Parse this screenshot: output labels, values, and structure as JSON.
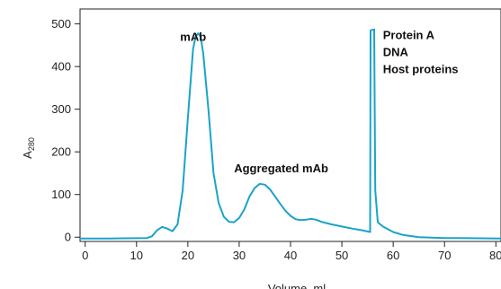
{
  "chart_data": {
    "type": "line",
    "title": "",
    "xlabel": "Volume, ml",
    "ylabel_main": "A",
    "ylabel_sub": "280",
    "xlim": [
      -1,
      81
    ],
    "ylim": [
      -10,
      535
    ],
    "x_ticks": [
      0,
      10,
      20,
      30,
      40,
      50,
      60,
      70,
      80
    ],
    "y_ticks": [
      0,
      100,
      200,
      300,
      400,
      500
    ],
    "grid": false,
    "legend": "none",
    "line_color": "#1aa3c8",
    "series": [
      {
        "values_xy": [
          [
            -1,
            -3
          ],
          [
            5,
            -3
          ],
          [
            10,
            -2.5
          ],
          [
            12,
            -2
          ],
          [
            13,
            2
          ],
          [
            14,
            16
          ],
          [
            15,
            24
          ],
          [
            16,
            20
          ],
          [
            17,
            14
          ],
          [
            18,
            30
          ],
          [
            19,
            110
          ],
          [
            20,
            280
          ],
          [
            21,
            440
          ],
          [
            21.5,
            470
          ],
          [
            22,
            478
          ],
          [
            22.5,
            470
          ],
          [
            23,
            430
          ],
          [
            24,
            300
          ],
          [
            25,
            150
          ],
          [
            26,
            80
          ],
          [
            27,
            48
          ],
          [
            28,
            36
          ],
          [
            29,
            35
          ],
          [
            30,
            45
          ],
          [
            31,
            65
          ],
          [
            32,
            95
          ],
          [
            33,
            115
          ],
          [
            34,
            125
          ],
          [
            35,
            123
          ],
          [
            36,
            112
          ],
          [
            37,
            95
          ],
          [
            38,
            78
          ],
          [
            39,
            62
          ],
          [
            40,
            50
          ],
          [
            41,
            42
          ],
          [
            42,
            40
          ],
          [
            43,
            41
          ],
          [
            44,
            43
          ],
          [
            45,
            41
          ],
          [
            46,
            36
          ],
          [
            48,
            30
          ],
          [
            50,
            25
          ],
          [
            52,
            20
          ],
          [
            54,
            16
          ],
          [
            55.5,
            12
          ],
          [
            55.6,
            485
          ],
          [
            56.3,
            487
          ],
          [
            56.5,
            110
          ],
          [
            57,
            35
          ],
          [
            58,
            25
          ],
          [
            60,
            12
          ],
          [
            62,
            5
          ],
          [
            65,
            0
          ],
          [
            70,
            -2
          ],
          [
            75,
            -2.5
          ],
          [
            81,
            -3
          ]
        ]
      }
    ],
    "annotations": [
      {
        "text": "mAb",
        "x": 18.5,
        "y": 460
      },
      {
        "text": "Aggregated mAb",
        "x": 29,
        "y": 152
      },
      {
        "text": "Protein A",
        "x": 58,
        "y": 465
      },
      {
        "text": "DNA",
        "x": 58,
        "y": 425
      },
      {
        "text": "Host proteins",
        "x": 58,
        "y": 385
      }
    ]
  }
}
